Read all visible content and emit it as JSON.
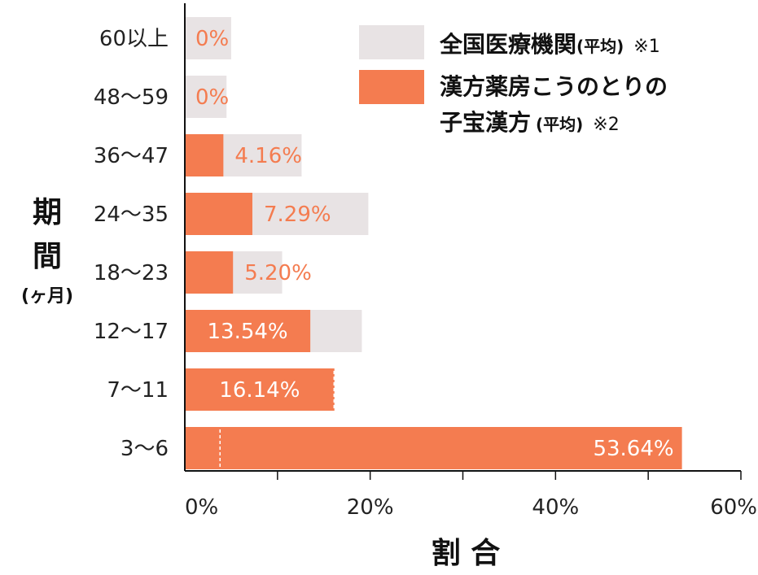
{
  "chart_data": {
    "type": "bar",
    "orientation": "horizontal",
    "categories": [
      "60以上",
      "48〜59",
      "36〜47",
      "24〜35",
      "18〜23",
      "12〜17",
      "7〜11",
      "3〜6"
    ],
    "series": [
      {
        "name": "全国医療機関",
        "name_suffix": "(平均)",
        "note": "※1",
        "color": "#e8e3e4",
        "values": [
          5,
          4.5,
          12.6,
          19.8,
          10.5,
          19.1,
          16.1,
          3.8
        ]
      },
      {
        "name": "漢方薬房こうのとりの子宝漢方",
        "name_line1": "漢方薬房こうのとりの",
        "name_line2": "子宝漢方",
        "name_suffix": "(平均)",
        "note": "※2",
        "color": "#f47c50",
        "values": [
          0,
          0,
          4.16,
          7.29,
          5.2,
          13.54,
          16.14,
          53.64
        ]
      }
    ],
    "value_labels": [
      "0%",
      "0%",
      "4.16%",
      "7.29%",
      "5.20%",
      "13.54%",
      "16.14%",
      "53.64%"
    ],
    "x_ticks": [
      "0%",
      "20%",
      "40%",
      "60%"
    ],
    "x_tick_values": [
      0,
      20,
      40,
      60
    ],
    "xlim": [
      0,
      60
    ],
    "xlabel": "割 合",
    "ylabel_line1": "期",
    "ylabel_line2": "間",
    "ylabel_unit": "(ヶ月)",
    "legend_position": "top-right",
    "grid": false
  }
}
